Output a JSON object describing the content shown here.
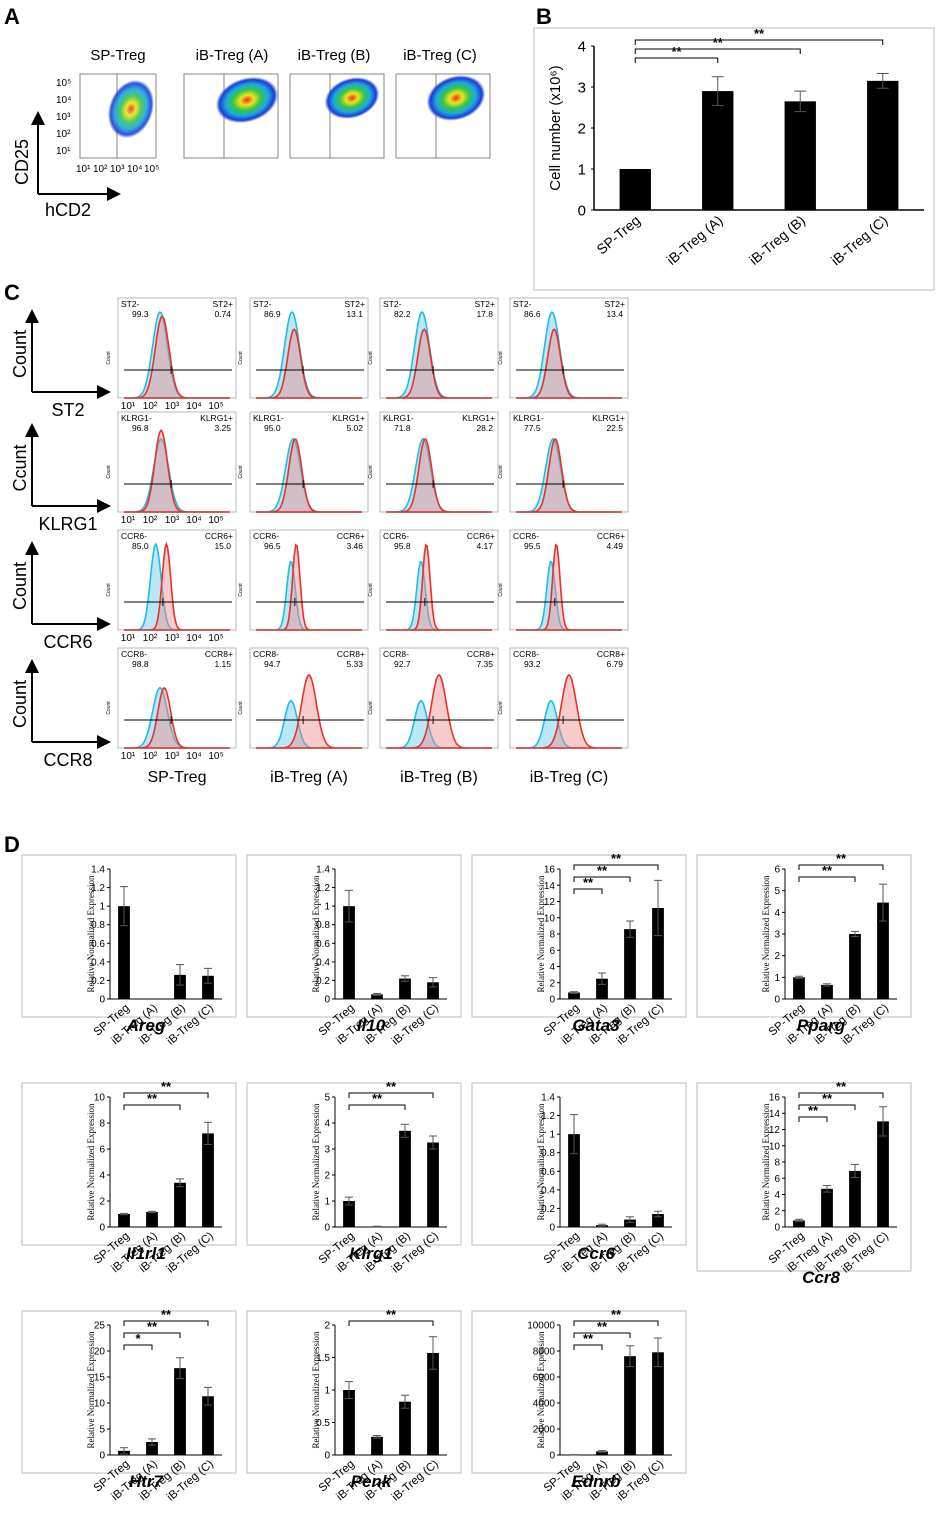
{
  "panel_letters": {
    "a": "A",
    "b": "B",
    "c": "C",
    "d": "D"
  },
  "panel_a": {
    "labels": [
      "SP-Treg",
      "iB-Treg (A)",
      "iB-Treg (B)",
      "iB-Treg (C)"
    ],
    "y_axis": "CD25",
    "x_axis": "hCD2",
    "tick_labels": {
      "y": [
        "10⁵",
        "10⁴",
        "10³",
        "10²",
        "10¹"
      ],
      "x": [
        "10¹",
        "10²",
        "10³",
        "10⁴",
        "10⁵"
      ]
    }
  },
  "panel_b_sig": "**",
  "panel_c": {
    "ylabels": [
      "Count",
      "Ccunt",
      "Count",
      "Count"
    ],
    "xlabels": [
      "ST2",
      "KLRG1",
      "CCR6",
      "CCR8"
    ],
    "col_labels": [
      "SP-Treg",
      "iB-Treg (A)",
      "iB-Treg (B)",
      "iB-Treg (C)"
    ],
    "x_ticks": [
      "10¹",
      "10²",
      "10³",
      "10⁴",
      "10⁵"
    ],
    "y_axis_small": "Count",
    "rows": [
      {
        "neg": "ST2-",
        "pos": "ST2+",
        "vals": [
          [
            "99.3",
            "0.74"
          ],
          [
            "86.9",
            "13.1"
          ],
          [
            "82.2",
            "17.8"
          ],
          [
            "86.6",
            "13.4"
          ]
        ]
      },
      {
        "neg": "KLRG1-",
        "pos": "KLRG1+",
        "vals": [
          [
            "96.8",
            "3.25"
          ],
          [
            "95.0",
            "5.02"
          ],
          [
            "71.8",
            "28.2"
          ],
          [
            "77.5",
            "22.5"
          ]
        ]
      },
      {
        "neg": "CCR6-",
        "pos": "CCR6+",
        "vals": [
          [
            "85.0",
            "15.0"
          ],
          [
            "96.5",
            "3.46"
          ],
          [
            "95.8",
            "4.17"
          ],
          [
            "95.5",
            "4.49"
          ]
        ]
      },
      {
        "neg": "CCR8-",
        "pos": "CCR8+",
        "vals": [
          [
            "98.8",
            "1.15"
          ],
          [
            "94.7",
            "5.33"
          ],
          [
            "92.7",
            "7.35"
          ],
          [
            "93.2",
            "6.79"
          ]
        ]
      }
    ]
  },
  "panel_d_ylabel": "Relative Normalized Expression",
  "chart_data": [
    {
      "id": "b",
      "type": "bar",
      "title": "",
      "xlabel": "",
      "ylabel": "Cell number (x10⁶)",
      "categories": [
        "SP-Treg",
        "iB-Treg (A)",
        "iB-Treg (B)",
        "iB-Treg (C)"
      ],
      "values": [
        1.0,
        2.9,
        2.65,
        3.15
      ],
      "errors": [
        0.0,
        0.35,
        0.25,
        0.18
      ],
      "ylim": [
        0,
        4
      ],
      "yticks": [
        0,
        1,
        2,
        3,
        4
      ],
      "sig": [
        [
          0,
          1
        ],
        [
          0,
          2
        ],
        [
          0,
          3
        ]
      ]
    },
    {
      "id": "d1",
      "type": "bar",
      "title": "Areg",
      "ylabel": "Relative Normalized Expression",
      "categories": [
        "SP-Treg",
        "iB-Treg (A)",
        "iB-Treg (B)",
        "iB-Treg (C)"
      ],
      "values": [
        1.0,
        0.0,
        0.26,
        0.25
      ],
      "errors": [
        0.21,
        0.0,
        0.11,
        0.08
      ],
      "ylim": [
        0,
        1.4
      ],
      "yticks": [
        0,
        0.2,
        0.4,
        0.6,
        0.8,
        1,
        1.2,
        1.4
      ],
      "sig": []
    },
    {
      "id": "d2",
      "type": "bar",
      "title": "Il10",
      "ylabel": "Relative Normalized Expression",
      "categories": [
        "SP-Treg",
        "iB-Treg (A)",
        "iB-Treg (B)",
        "iB-Treg (C)"
      ],
      "values": [
        1.0,
        0.05,
        0.22,
        0.18
      ],
      "errors": [
        0.17,
        0.01,
        0.03,
        0.05
      ],
      "ylim": [
        0,
        1.4
      ],
      "yticks": [
        0,
        0.2,
        0.4,
        0.6,
        0.8,
        1,
        1.2,
        1.4
      ],
      "sig": []
    },
    {
      "id": "d3",
      "type": "bar",
      "title": "Gata3",
      "ylabel": "Relative Normalized Expression",
      "categories": [
        "SP-Treg",
        "iB-Treg (A)",
        "iB-Treg (B)",
        "iB-Treg (C)"
      ],
      "values": [
        0.8,
        2.5,
        8.6,
        11.2
      ],
      "errors": [
        0.1,
        0.7,
        1.0,
        3.4
      ],
      "ylim": [
        0,
        16
      ],
      "yticks": [
        0,
        2,
        4,
        6,
        8,
        10,
        12,
        14,
        16
      ],
      "sig": [
        [
          0,
          1
        ],
        [
          0,
          2
        ],
        [
          0,
          3
        ]
      ]
    },
    {
      "id": "d4",
      "type": "bar",
      "title": "Pparg",
      "ylabel": "Relative Normalized Expression",
      "categories": [
        "SP-Treg",
        "iB-Treg (A)",
        "iB-Treg (B)",
        "iB-Treg (C)"
      ],
      "values": [
        1.0,
        0.65,
        3.0,
        4.45
      ],
      "errors": [
        0.05,
        0.05,
        0.12,
        0.85
      ],
      "ylim": [
        0,
        6
      ],
      "yticks": [
        0,
        1,
        2,
        3,
        4,
        5,
        6
      ],
      "sig": [
        [
          0,
          2
        ],
        [
          0,
          3
        ]
      ]
    },
    {
      "id": "d5",
      "type": "bar",
      "title": "Il1rl1",
      "ylabel": "Relative Normalized Expression",
      "categories": [
        "SP-Treg",
        "iB-Treg (A)",
        "iB-Treg (B)",
        "iB-Treg (C)"
      ],
      "values": [
        1.0,
        1.15,
        3.4,
        7.2
      ],
      "errors": [
        0.05,
        0.05,
        0.3,
        0.85
      ],
      "ylim": [
        0,
        10
      ],
      "yticks": [
        0,
        2,
        4,
        6,
        8,
        10
      ],
      "sig": [
        [
          0,
          2
        ],
        [
          0,
          3
        ]
      ]
    },
    {
      "id": "d6",
      "type": "bar",
      "title": "Klrg1",
      "ylabel": "Relative Normalized Expression",
      "categories": [
        "SP-Treg",
        "iB-Treg (A)",
        "iB-Treg (B)",
        "iB-Treg (C)"
      ],
      "values": [
        1.0,
        0.02,
        3.7,
        3.25
      ],
      "errors": [
        0.15,
        0.01,
        0.25,
        0.25
      ],
      "ylim": [
        0,
        5
      ],
      "yticks": [
        0,
        1,
        2,
        3,
        4,
        5
      ],
      "sig": [
        [
          0,
          2
        ],
        [
          0,
          3
        ]
      ]
    },
    {
      "id": "d7",
      "type": "bar",
      "title": "Ccr6",
      "ylabel": "Relative Normalized Expression",
      "categories": [
        "SP-Treg",
        "iB-Treg (A)",
        "iB-Treg (B)",
        "iB-Treg (C)"
      ],
      "values": [
        1.0,
        0.02,
        0.08,
        0.14
      ],
      "errors": [
        0.21,
        0.01,
        0.03,
        0.03
      ],
      "ylim": [
        0,
        1.4
      ],
      "yticks": [
        0,
        0.2,
        0.4,
        0.6,
        0.8,
        1,
        1.2,
        1.4
      ],
      "sig": []
    },
    {
      "id": "d8",
      "type": "bar",
      "title": "Ccr8",
      "ylabel": "Relative Normalized Expression",
      "categories": [
        "SP-Treg",
        "iB-Treg (A)",
        "iB-Treg (B)",
        "iB-Treg (C)"
      ],
      "values": [
        0.8,
        4.7,
        6.9,
        13.0
      ],
      "errors": [
        0.15,
        0.4,
        0.8,
        1.8
      ],
      "ylim": [
        0,
        16
      ],
      "yticks": [
        0,
        2,
        4,
        6,
        8,
        10,
        12,
        14,
        16
      ],
      "sig": [
        [
          0,
          1
        ],
        [
          0,
          2
        ],
        [
          0,
          3
        ]
      ]
    },
    {
      "id": "d9",
      "type": "bar",
      "title": "Htr7",
      "ylabel": "Relative Normalized Expression",
      "categories": [
        "SP-Treg",
        "iB-Treg (A)",
        "iB-Treg (B)",
        "iB-Treg (C)"
      ],
      "values": [
        0.8,
        2.5,
        16.7,
        11.3
      ],
      "errors": [
        0.6,
        0.6,
        2.0,
        1.7
      ],
      "ylim": [
        0,
        25
      ],
      "yticks": [
        0,
        5,
        10,
        15,
        20,
        25
      ],
      "sig": [
        [
          0,
          1,
          "*"
        ],
        [
          0,
          2
        ],
        [
          0,
          3
        ]
      ]
    },
    {
      "id": "d10",
      "type": "bar",
      "title": "Penk",
      "ylabel": "Relative Normalized Expression",
      "categories": [
        "SP-Treg",
        "iB-Treg (A)",
        "iB-Treg (B)",
        "iB-Treg (C)"
      ],
      "values": [
        1.0,
        0.28,
        0.82,
        1.57
      ],
      "errors": [
        0.13,
        0.02,
        0.1,
        0.25
      ],
      "ylim": [
        0,
        2
      ],
      "yticks": [
        0,
        0.5,
        1,
        1.5,
        2
      ],
      "sig": [
        [
          0,
          3
        ]
      ]
    },
    {
      "id": "d11",
      "type": "bar",
      "title": "Ednrb",
      "ylabel": "Relative Normalized Expression",
      "categories": [
        "SP-Treg",
        "iB-Treg (A)",
        "iB-Treg (B)",
        "iB-Treg (C)"
      ],
      "values": [
        20,
        280,
        7600,
        7900
      ],
      "errors": [
        10,
        60,
        800,
        1100
      ],
      "ylim": [
        0,
        10000
      ],
      "yticks": [
        0,
        2000,
        4000,
        6000,
        8000,
        10000
      ],
      "sig": [
        [
          0,
          1
        ],
        [
          0,
          2
        ],
        [
          0,
          3
        ]
      ]
    }
  ]
}
